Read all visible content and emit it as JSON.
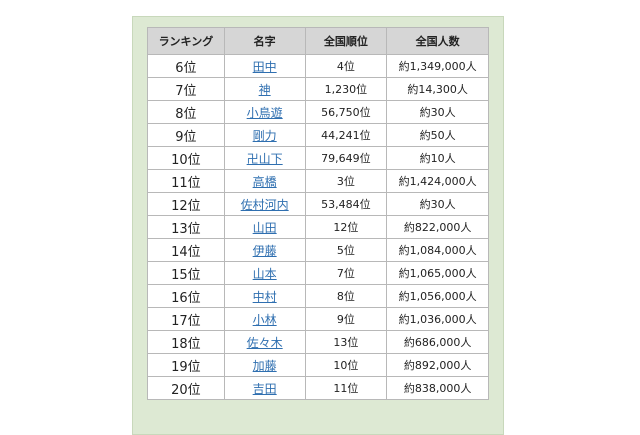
{
  "table": {
    "headers": [
      "ランキング",
      "名字",
      "全国順位",
      "全国人数"
    ],
    "rows": [
      {
        "rank": "6位",
        "name": "田中",
        "national_rank": "4位",
        "national_count": "約1,349,000人"
      },
      {
        "rank": "7位",
        "name": "神",
        "national_rank": "1,230位",
        "national_count": "約14,300人"
      },
      {
        "rank": "8位",
        "name": "小鳥遊",
        "national_rank": "56,750位",
        "national_count": "約30人"
      },
      {
        "rank": "9位",
        "name": "剛力",
        "national_rank": "44,241位",
        "national_count": "約50人"
      },
      {
        "rank": "10位",
        "name": "卍山下",
        "national_rank": "79,649位",
        "national_count": "約10人"
      },
      {
        "rank": "11位",
        "name": "高橋",
        "national_rank": "3位",
        "national_count": "約1,424,000人"
      },
      {
        "rank": "12位",
        "name": "佐村河内",
        "national_rank": "53,484位",
        "national_count": "約30人"
      },
      {
        "rank": "13位",
        "name": "山田",
        "national_rank": "12位",
        "national_count": "約822,000人"
      },
      {
        "rank": "14位",
        "name": "伊藤",
        "national_rank": "5位",
        "national_count": "約1,084,000人"
      },
      {
        "rank": "15位",
        "name": "山本",
        "national_rank": "7位",
        "national_count": "約1,065,000人"
      },
      {
        "rank": "16位",
        "name": "中村",
        "national_rank": "8位",
        "national_count": "約1,056,000人"
      },
      {
        "rank": "17位",
        "name": "小林",
        "national_rank": "9位",
        "national_count": "約1,036,000人"
      },
      {
        "rank": "18位",
        "name": "佐々木",
        "national_rank": "13位",
        "national_count": "約686,000人"
      },
      {
        "rank": "19位",
        "name": "加藤",
        "national_rank": "10位",
        "national_count": "約892,000人"
      },
      {
        "rank": "20位",
        "name": "吉田",
        "national_rank": "11位",
        "national_count": "約838,000人"
      }
    ]
  },
  "colors": {
    "link": "#2f6fb0",
    "header_bg": "#d6d6d6",
    "frame_bg": "#dde9d3"
  }
}
